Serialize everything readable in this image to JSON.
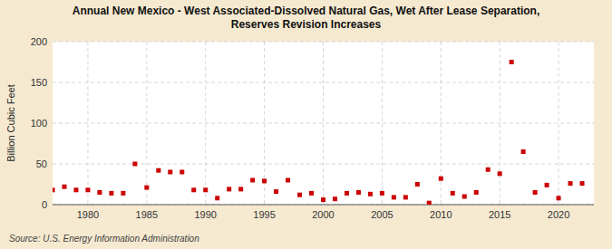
{
  "chart_data": {
    "type": "scatter",
    "title": "Annual New Mexico - West Associated-Dissolved Natural Gas, Wet After Lease Separation,\nReserves Revision Increases",
    "ylabel": "Billion Cubic Feet",
    "annotations": [
      "Source: U.S. Energy Information Administration"
    ],
    "x": [
      1977,
      1978,
      1979,
      1980,
      1981,
      1982,
      1983,
      1984,
      1985,
      1986,
      1987,
      1988,
      1989,
      1990,
      1991,
      1992,
      1993,
      1994,
      1995,
      1996,
      1997,
      1998,
      1999,
      2000,
      2001,
      2002,
      2003,
      2004,
      2005,
      2006,
      2007,
      2008,
      2009,
      2010,
      2011,
      2012,
      2013,
      2014,
      2015,
      2016,
      2017,
      2018,
      2019,
      2020,
      2021,
      2022
    ],
    "values": [
      18,
      22,
      18,
      18,
      15,
      14,
      14,
      50,
      21,
      42,
      40,
      40,
      18,
      18,
      8,
      19,
      19,
      30,
      29,
      16,
      30,
      12,
      14,
      6,
      7,
      14,
      15,
      13,
      14,
      9,
      9,
      25,
      2,
      32,
      14,
      10,
      15,
      43,
      38,
      175,
      65,
      15,
      24,
      8,
      26,
      26
    ],
    "color": "#cc0000",
    "marker": "square",
    "xlim": [
      1977,
      2023
    ],
    "ylim": [
      0,
      200
    ],
    "xticks": [
      1980,
      1985,
      1990,
      1995,
      2000,
      2005,
      2010,
      2015,
      2020
    ],
    "yticks": [
      0,
      50,
      100,
      150,
      200
    ],
    "grid": true
  }
}
